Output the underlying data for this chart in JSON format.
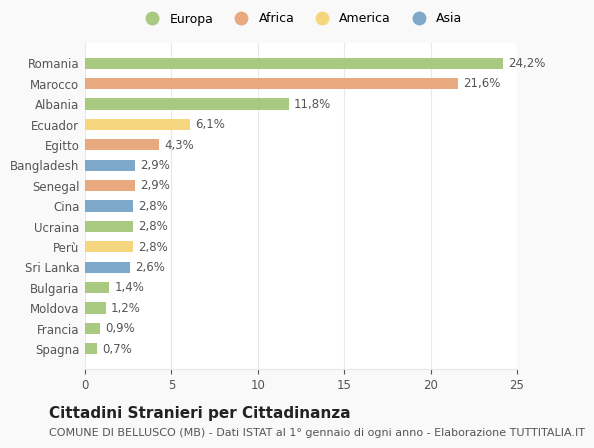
{
  "countries": [
    "Romania",
    "Marocco",
    "Albania",
    "Ecuador",
    "Egitto",
    "Bangladesh",
    "Senegal",
    "Cina",
    "Ucraina",
    "Perù",
    "Sri Lanka",
    "Bulgaria",
    "Moldova",
    "Francia",
    "Spagna"
  ],
  "values": [
    24.2,
    21.6,
    11.8,
    6.1,
    4.3,
    2.9,
    2.9,
    2.8,
    2.8,
    2.8,
    2.6,
    1.4,
    1.2,
    0.9,
    0.7
  ],
  "labels": [
    "24,2%",
    "21,6%",
    "11,8%",
    "6,1%",
    "4,3%",
    "2,9%",
    "2,9%",
    "2,8%",
    "2,8%",
    "2,8%",
    "2,6%",
    "1,4%",
    "1,2%",
    "0,9%",
    "0,7%"
  ],
  "continents": [
    "Europa",
    "Africa",
    "Europa",
    "America",
    "Africa",
    "Asia",
    "Africa",
    "Asia",
    "Europa",
    "America",
    "Asia",
    "Europa",
    "Europa",
    "Europa",
    "Europa"
  ],
  "colors": {
    "Europa": "#a8c97f",
    "Africa": "#e8a97e",
    "America": "#f5d57e",
    "Asia": "#7ea8c9"
  },
  "legend_order": [
    "Europa",
    "Africa",
    "America",
    "Asia"
  ],
  "title": "Cittadini Stranieri per Cittadinanza",
  "subtitle": "COMUNE DI BELLUSCO (MB) - Dati ISTAT al 1° gennaio di ogni anno - Elaborazione TUTTITALIA.IT",
  "xlim": [
    0,
    25
  ],
  "xticks": [
    0,
    5,
    10,
    15,
    20,
    25
  ],
  "bg_color": "#f9f9f9",
  "plot_bg_color": "#ffffff",
  "grid_color": "#e8e8e8",
  "text_color": "#555555",
  "bar_height": 0.55,
  "label_fontsize": 8.5,
  "title_fontsize": 11,
  "subtitle_fontsize": 8
}
